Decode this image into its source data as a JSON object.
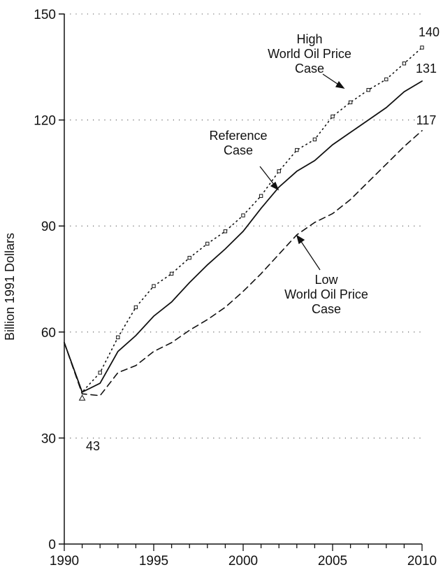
{
  "chart_data": {
    "type": "line",
    "title": "",
    "xlabel": "",
    "ylabel": "Billion 1991 Dollars",
    "xlim": [
      1990,
      2010
    ],
    "ylim": [
      0,
      150
    ],
    "x_ticks": [
      1990,
      1995,
      2000,
      2005,
      2010
    ],
    "y_ticks": [
      0,
      30,
      60,
      90,
      120,
      150
    ],
    "grid": "horizontal dotted",
    "x": [
      1990,
      1991,
      1992,
      1993,
      1994,
      1995,
      1996,
      1997,
      1998,
      1999,
      2000,
      2001,
      2002,
      2003,
      2004,
      2005,
      2006,
      2007,
      2008,
      2009,
      2010
    ],
    "series": [
      {
        "name": "High World Oil Price Case",
        "style": "dotted",
        "values": [
          57,
          43,
          48.5,
          58.5,
          67,
          73,
          76.5,
          81,
          85,
          88.5,
          93,
          98.5,
          105.5,
          111.5,
          114.5,
          121,
          125,
          128.5,
          131.5,
          136,
          140.5
        ]
      },
      {
        "name": "Reference Case",
        "style": "solid",
        "values": [
          57,
          43,
          45.5,
          54.5,
          59,
          64.5,
          68.5,
          74,
          79,
          83.5,
          88.5,
          95,
          101,
          105.5,
          108.5,
          113,
          116.5,
          120,
          123.5,
          128,
          131
        ]
      },
      {
        "name": "Low World Oil Price Case",
        "style": "dashed",
        "values": [
          57,
          42.5,
          42,
          48.5,
          50.5,
          54.5,
          57,
          60.5,
          63.5,
          67,
          71.5,
          76.5,
          82,
          87.5,
          91,
          93.5,
          97.5,
          102.5,
          107.5,
          112.5,
          117
        ]
      }
    ],
    "annotations": {
      "high": [
        "High",
        "World Oil Price",
        "Case"
      ],
      "reference": [
        "Reference",
        "Case"
      ],
      "low": [
        "Low",
        "World Oil Price",
        "Case"
      ],
      "end_high": "140",
      "end_ref": "131",
      "end_low": "117",
      "min_label": "43"
    }
  }
}
